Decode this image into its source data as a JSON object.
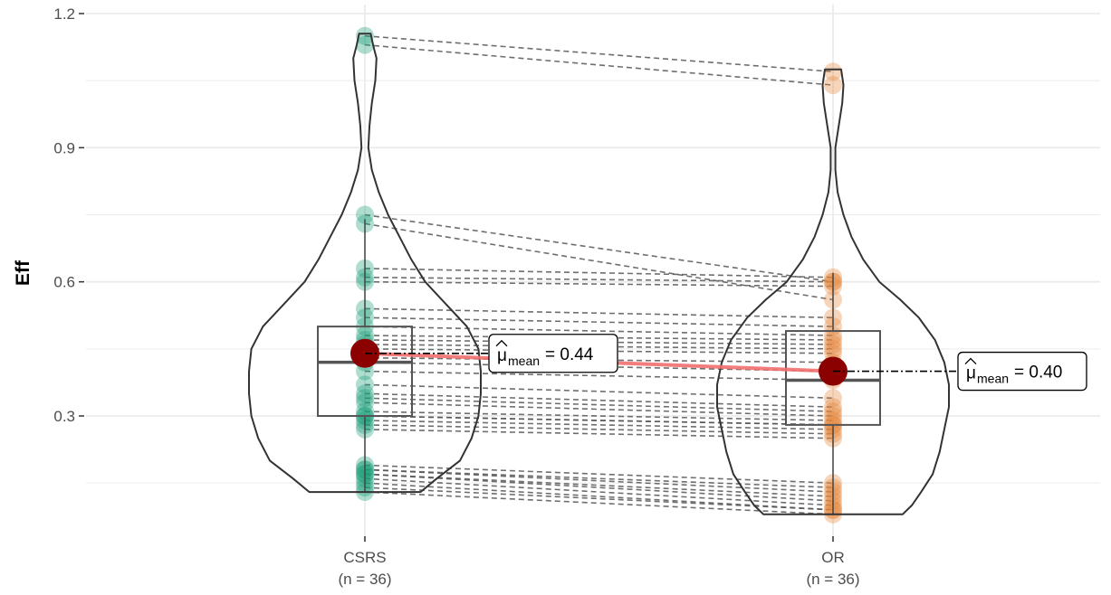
{
  "chart_data": {
    "type": "violin-box-paired",
    "ylabel": "Eff",
    "ylim": [
      0.07,
      1.2
    ],
    "yticks": [
      0.3,
      0.6,
      0.9,
      1.2
    ],
    "ytick_labels": [
      "0.3",
      "0.6",
      "0.9",
      "1.2"
    ],
    "grid": true,
    "categories": [
      {
        "label": "CSRS",
        "n_label": "(n = 36)",
        "color": "#1b9e77"
      },
      {
        "label": "OR",
        "n_label": "(n = 36)",
        "color": "#e6863b"
      }
    ],
    "pairs": [
      [
        1.15,
        1.07
      ],
      [
        1.13,
        1.04
      ],
      [
        0.75,
        0.6
      ],
      [
        0.73,
        0.56
      ],
      [
        0.63,
        0.61
      ],
      [
        0.61,
        0.6
      ],
      [
        0.6,
        0.59
      ],
      [
        0.54,
        0.52
      ],
      [
        0.52,
        0.5
      ],
      [
        0.5,
        0.48
      ],
      [
        0.48,
        0.47
      ],
      [
        0.47,
        0.46
      ],
      [
        0.46,
        0.45
      ],
      [
        0.45,
        0.44
      ],
      [
        0.43,
        0.42
      ],
      [
        0.42,
        0.4
      ],
      [
        0.4,
        0.38
      ],
      [
        0.37,
        0.34
      ],
      [
        0.35,
        0.32
      ],
      [
        0.34,
        0.31
      ],
      [
        0.33,
        0.3
      ],
      [
        0.31,
        0.29
      ],
      [
        0.3,
        0.28
      ],
      [
        0.3,
        0.28
      ],
      [
        0.29,
        0.27
      ],
      [
        0.28,
        0.26
      ],
      [
        0.27,
        0.25
      ],
      [
        0.19,
        0.15
      ],
      [
        0.18,
        0.14
      ],
      [
        0.18,
        0.13
      ],
      [
        0.17,
        0.12
      ],
      [
        0.17,
        0.11
      ],
      [
        0.16,
        0.1
      ],
      [
        0.15,
        0.09
      ],
      [
        0.14,
        0.09
      ],
      [
        0.13,
        0.08
      ]
    ],
    "boxes": [
      {
        "q1": 0.3,
        "median": 0.42,
        "q3": 0.5,
        "whisker_low": 0.13,
        "whisker_high": 0.74
      },
      {
        "q1": 0.28,
        "median": 0.38,
        "q3": 0.49,
        "whisker_low": 0.08,
        "whisker_high": 0.62
      }
    ],
    "means": [
      0.44,
      0.4
    ],
    "mean_labels": [
      {
        "prefix": "μ",
        "sub": "mean",
        "value_text": "= 0.44"
      },
      {
        "prefix": "μ",
        "sub": "mean",
        "value_text": "= 0.40"
      }
    ],
    "mean_color": "#8b0000",
    "mean_line_color": "#f26f6f",
    "violins": [
      {
        "ymin": 0.13,
        "ymax": 1.155,
        "profile": [
          [
            0.13,
            0.48
          ],
          [
            0.16,
            0.62
          ],
          [
            0.2,
            0.82
          ],
          [
            0.25,
            0.92
          ],
          [
            0.3,
            0.98
          ],
          [
            0.35,
            1.0
          ],
          [
            0.4,
            1.0
          ],
          [
            0.45,
            0.98
          ],
          [
            0.5,
            0.88
          ],
          [
            0.55,
            0.7
          ],
          [
            0.6,
            0.52
          ],
          [
            0.65,
            0.4
          ],
          [
            0.7,
            0.3
          ],
          [
            0.75,
            0.2
          ],
          [
            0.8,
            0.12
          ],
          [
            0.85,
            0.06
          ],
          [
            0.9,
            0.03
          ],
          [
            0.95,
            0.04
          ],
          [
            1.0,
            0.06
          ],
          [
            1.05,
            0.09
          ],
          [
            1.1,
            0.1
          ],
          [
            1.13,
            0.07
          ],
          [
            1.155,
            0.05
          ]
        ]
      },
      {
        "ymin": 0.08,
        "ymax": 1.075,
        "profile": [
          [
            0.08,
            0.6
          ],
          [
            0.1,
            0.68
          ],
          [
            0.13,
            0.76
          ],
          [
            0.17,
            0.86
          ],
          [
            0.22,
            0.92
          ],
          [
            0.27,
            0.96
          ],
          [
            0.32,
            1.0
          ],
          [
            0.37,
            1.0
          ],
          [
            0.42,
            0.96
          ],
          [
            0.47,
            0.88
          ],
          [
            0.52,
            0.74
          ],
          [
            0.56,
            0.58
          ],
          [
            0.6,
            0.4
          ],
          [
            0.65,
            0.26
          ],
          [
            0.7,
            0.16
          ],
          [
            0.75,
            0.09
          ],
          [
            0.8,
            0.04
          ],
          [
            0.85,
            0.02
          ],
          [
            0.9,
            0.02
          ],
          [
            0.95,
            0.05
          ],
          [
            1.0,
            0.08
          ],
          [
            1.04,
            0.09
          ],
          [
            1.075,
            0.07
          ]
        ]
      }
    ]
  }
}
